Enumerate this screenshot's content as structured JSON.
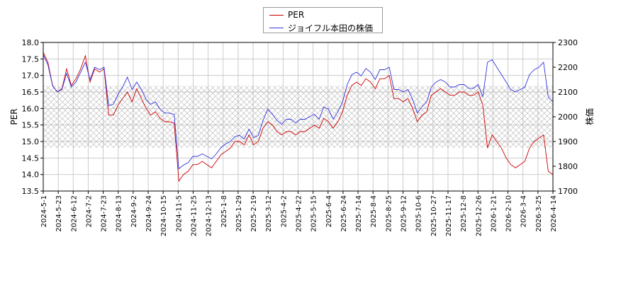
{
  "chart_data": {
    "type": "line",
    "legend": {
      "placement": "top-center"
    },
    "x_ticks": [
      "2024-5-1",
      "2024-5-23",
      "2024-6-12",
      "2024-7-2",
      "2024-7-23",
      "2024-8-13",
      "2024-9-2",
      "2024-9-24",
      "2024-10-15",
      "2024-11-5",
      "2024-11-25",
      "2024-12-13",
      "2025-1-8",
      "2025-1-29",
      "2025-2-19",
      "2025-3-12",
      "2025-4-2",
      "2025-4-22",
      "2025-5-15",
      "2025-6-4",
      "2025-6-24",
      "2025-7-14",
      "2025-8-4",
      "2025-8-25",
      "2025-9-12",
      "2025-10-6",
      "2025-10-27",
      "2025-11-17",
      "2025-12-8",
      "2025-12-26",
      "2026-1-21",
      "2026-2-10",
      "2026-3-4",
      "2026-3-25",
      "2026-4-14"
    ],
    "left_axis": {
      "label": "PER",
      "ylim": [
        13.5,
        18.0
      ],
      "ticks": [
        "13.5",
        "14.0",
        "14.5",
        "15.0",
        "15.5",
        "16.0",
        "16.5",
        "17.0",
        "17.5",
        "18.0"
      ]
    },
    "right_axis": {
      "label": "株価",
      "ylim": [
        1700,
        2300
      ],
      "ticks": [
        "1700",
        "1800",
        "1900",
        "2000",
        "2100",
        "2200",
        "2300"
      ]
    },
    "shaded_band": {
      "axis": "right",
      "from": 1875,
      "to": 2125
    },
    "grid": true,
    "series": [
      {
        "name": "PER",
        "axis": "left",
        "color": "#cc0000",
        "values": [
          17.7,
          17.4,
          16.7,
          16.5,
          16.6,
          17.2,
          16.7,
          16.9,
          17.2,
          17.6,
          16.8,
          17.2,
          17.1,
          17.2,
          15.8,
          15.8,
          16.1,
          16.3,
          16.5,
          16.2,
          16.6,
          16.3,
          16.0,
          15.8,
          15.9,
          15.7,
          15.6,
          15.6,
          15.55,
          13.8,
          14.0,
          14.1,
          14.3,
          14.3,
          14.4,
          14.3,
          14.2,
          14.4,
          14.6,
          14.7,
          14.8,
          15.0,
          15.0,
          14.9,
          15.2,
          14.9,
          15.0,
          15.4,
          15.6,
          15.5,
          15.3,
          15.2,
          15.3,
          15.3,
          15.2,
          15.3,
          15.3,
          15.4,
          15.5,
          15.4,
          15.7,
          15.6,
          15.4,
          15.6,
          15.9,
          16.4,
          16.7,
          16.8,
          16.7,
          16.9,
          16.8,
          16.6,
          16.9,
          16.9,
          17.0,
          16.3,
          16.3,
          16.2,
          16.3,
          16.0,
          15.6,
          15.8,
          15.9,
          16.4,
          16.5,
          16.6,
          16.5,
          16.4,
          16.4,
          16.5,
          16.5,
          16.4,
          16.4,
          16.5,
          16.1,
          14.8,
          15.2,
          15.0,
          14.8,
          14.5,
          14.3,
          14.2,
          14.3,
          14.4,
          14.8,
          15.0,
          15.1,
          15.2,
          14.1,
          14.0
        ]
      },
      {
        "name": "ジョイフル本田の株価",
        "axis": "right",
        "color": "#3333dd",
        "values": [
          2250,
          2210,
          2125,
          2100,
          2110,
          2175,
          2120,
          2140,
          2180,
          2220,
          2150,
          2200,
          2190,
          2200,
          2045,
          2050,
          2090,
          2120,
          2160,
          2110,
          2140,
          2110,
          2070,
          2050,
          2060,
          2030,
          2015,
          2015,
          2010,
          1790,
          1805,
          1815,
          1840,
          1840,
          1850,
          1840,
          1830,
          1850,
          1875,
          1890,
          1900,
          1920,
          1925,
          1910,
          1950,
          1915,
          1925,
          1985,
          2030,
          2010,
          1985,
          1970,
          1990,
          1990,
          1975,
          1990,
          1990,
          2000,
          2010,
          1990,
          2040,
          2030,
          1990,
          2020,
          2060,
          2130,
          2170,
          2180,
          2165,
          2195,
          2180,
          2150,
          2190,
          2190,
          2200,
          2110,
          2110,
          2100,
          2110,
          2070,
          2015,
          2040,
          2060,
          2120,
          2140,
          2150,
          2140,
          2120,
          2120,
          2130,
          2130,
          2115,
          2115,
          2130,
          2080,
          2220,
          2230,
          2200,
          2170,
          2140,
          2110,
          2100,
          2110,
          2120,
          2170,
          2190,
          2200,
          2220,
          2080,
          2060
        ]
      }
    ]
  }
}
